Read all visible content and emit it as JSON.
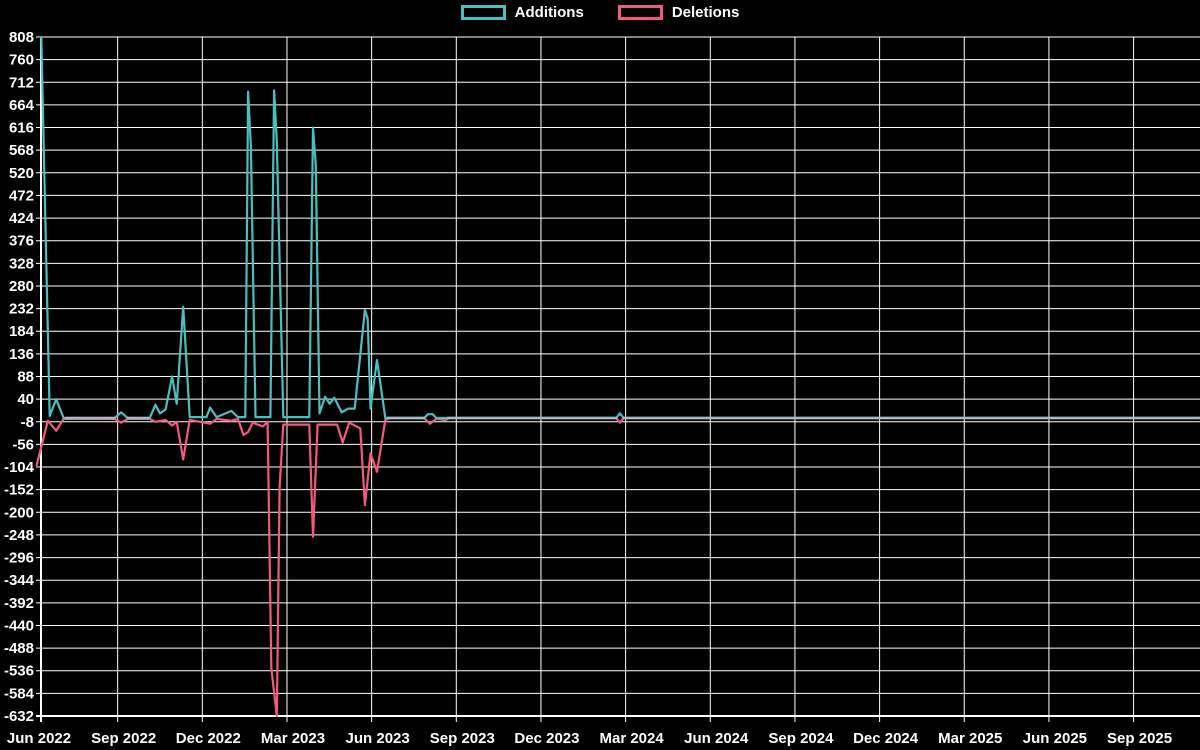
{
  "legend": {
    "items": [
      {
        "label": "Additions",
        "color": "#4bbfc0"
      },
      {
        "label": "Deletions",
        "color": "#f2597c"
      }
    ]
  },
  "colors": {
    "background": "#000000",
    "grid": "#ffffff",
    "axis": "#ffffff",
    "text": "#ffffff",
    "additions": "#4bbfc0",
    "deletions": "#f2597c",
    "baseline_overlap": "#a5bbc5"
  },
  "chart_data": {
    "type": "line",
    "title": "",
    "xlabel": "",
    "ylabel": "",
    "grid": true,
    "legend_position": "top",
    "x_axis": {
      "tick_labels": [
        "Jun 2022",
        "Sep 2022",
        "Dec 2022",
        "Mar 2023",
        "Jun 2023",
        "Sep 2023",
        "Dec 2023",
        "Mar 2024",
        "Jun 2024",
        "Sep 2024",
        "Dec 2024",
        "Mar 2025",
        "Jun 2025",
        "Sep 2025"
      ]
    },
    "y_axis": {
      "min": -632,
      "max": 808,
      "step": 48,
      "ticks": [
        808,
        760,
        712,
        664,
        616,
        568,
        520,
        472,
        424,
        376,
        328,
        280,
        232,
        184,
        136,
        88,
        40,
        -8,
        -56,
        -104,
        -152,
        -200,
        -248,
        -296,
        -344,
        -392,
        -440,
        -488,
        -536,
        -584,
        -632
      ]
    },
    "series": [
      {
        "name": "Additions",
        "color": "#4bbfc0",
        "points": [
          [
            "2022-06-10",
            808
          ],
          [
            "2022-06-19",
            4
          ],
          [
            "2022-06-26",
            40
          ],
          [
            "2022-07-04",
            0
          ],
          [
            "2022-08-28",
            0
          ],
          [
            "2022-09-04",
            12
          ],
          [
            "2022-09-11",
            0
          ],
          [
            "2022-10-05",
            0
          ],
          [
            "2022-10-11",
            28
          ],
          [
            "2022-10-16",
            10
          ],
          [
            "2022-10-22",
            18
          ],
          [
            "2022-10-29",
            88
          ],
          [
            "2022-11-03",
            30
          ],
          [
            "2022-11-10",
            236
          ],
          [
            "2022-11-17",
            2
          ],
          [
            "2022-12-05",
            2
          ],
          [
            "2022-12-09",
            22
          ],
          [
            "2022-12-16",
            2
          ],
          [
            "2023-01-01",
            15
          ],
          [
            "2023-01-08",
            2
          ],
          [
            "2023-01-16",
            2
          ],
          [
            "2023-01-19",
            692
          ],
          [
            "2023-01-22",
            575
          ],
          [
            "2023-01-27",
            2
          ],
          [
            "2023-02-12",
            2
          ],
          [
            "2023-02-16",
            695
          ],
          [
            "2023-02-19",
            586
          ],
          [
            "2023-02-26",
            2
          ],
          [
            "2023-03-26",
            2
          ],
          [
            "2023-03-30",
            616
          ],
          [
            "2023-04-02",
            536
          ],
          [
            "2023-04-06",
            10
          ],
          [
            "2023-04-12",
            45
          ],
          [
            "2023-04-17",
            30
          ],
          [
            "2023-04-22",
            43
          ],
          [
            "2023-04-30",
            12
          ],
          [
            "2023-05-07",
            20
          ],
          [
            "2023-05-14",
            20
          ],
          [
            "2023-05-25",
            229
          ],
          [
            "2023-05-28",
            210
          ],
          [
            "2023-05-31",
            20
          ],
          [
            "2023-06-07",
            123
          ],
          [
            "2023-06-16",
            0
          ],
          [
            "2023-07-28",
            0
          ],
          [
            "2023-08-01",
            8
          ],
          [
            "2023-08-06",
            8
          ],
          [
            "2023-08-10",
            0
          ],
          [
            "2024-02-20",
            0
          ],
          [
            "2024-02-24",
            10
          ],
          [
            "2024-02-28",
            0
          ],
          [
            "2025-11-10",
            0
          ]
        ]
      },
      {
        "name": "Deletions",
        "color": "#f2597c",
        "points": [
          [
            "2022-06-05",
            -100
          ],
          [
            "2022-06-17",
            -6
          ],
          [
            "2022-06-26",
            -27
          ],
          [
            "2022-07-04",
            -2
          ],
          [
            "2022-08-28",
            -2
          ],
          [
            "2022-09-04",
            -10
          ],
          [
            "2022-09-11",
            -2
          ],
          [
            "2022-10-05",
            -2
          ],
          [
            "2022-10-11",
            -8
          ],
          [
            "2022-10-22",
            -4
          ],
          [
            "2022-10-29",
            -16
          ],
          [
            "2022-11-03",
            -8
          ],
          [
            "2022-11-10",
            -88
          ],
          [
            "2022-11-17",
            -4
          ],
          [
            "2022-12-09",
            -12
          ],
          [
            "2022-12-16",
            -2
          ],
          [
            "2023-01-01",
            -6
          ],
          [
            "2023-01-08",
            -2
          ],
          [
            "2023-01-14",
            -36
          ],
          [
            "2023-01-19",
            -30
          ],
          [
            "2023-01-24",
            -10
          ],
          [
            "2023-02-04",
            -18
          ],
          [
            "2023-02-09",
            -8
          ],
          [
            "2023-02-13",
            -530
          ],
          [
            "2023-02-19",
            -632
          ],
          [
            "2023-02-22",
            -147
          ],
          [
            "2023-02-26",
            -14
          ],
          [
            "2023-03-26",
            -14
          ],
          [
            "2023-03-30",
            -252
          ],
          [
            "2023-04-04",
            -14
          ],
          [
            "2023-04-25",
            -14
          ],
          [
            "2023-05-01",
            -52
          ],
          [
            "2023-05-08",
            -10
          ],
          [
            "2023-05-20",
            -22
          ],
          [
            "2023-05-25",
            -185
          ],
          [
            "2023-05-31",
            -75
          ],
          [
            "2023-06-07",
            -114
          ],
          [
            "2023-06-16",
            -4
          ],
          [
            "2023-06-20",
            0
          ],
          [
            "2023-07-28",
            0
          ],
          [
            "2023-08-03",
            -12
          ],
          [
            "2023-08-10",
            -2
          ],
          [
            "2023-08-20",
            -4
          ],
          [
            "2023-08-24",
            0
          ],
          [
            "2024-02-20",
            0
          ],
          [
            "2024-02-24",
            -10
          ],
          [
            "2024-02-28",
            0
          ],
          [
            "2025-11-10",
            0
          ]
        ]
      }
    ]
  }
}
